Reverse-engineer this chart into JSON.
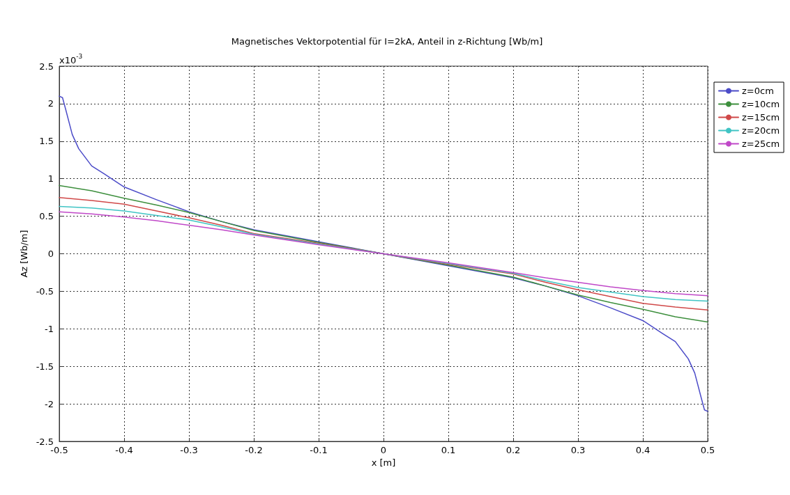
{
  "chart_data": {
    "type": "line",
    "title": "Magnetisches Vektorpotential für I=2kA, Anteil in z-Richtung [Wb/m]",
    "xlabel": "x [m]",
    "ylabel": "Az [Wb/m]",
    "annotations": [
      "x10$^{-3}$"
    ],
    "xlim": [
      -0.5,
      0.5
    ],
    "xticks": [
      -0.5,
      -0.4,
      -0.3,
      -0.2,
      -0.1,
      0,
      0.1,
      0.2,
      0.3,
      0.4,
      0.5
    ],
    "ylim": [
      -2.5,
      2.5
    ],
    "yticks": [
      -2.5,
      -2,
      -1.5,
      -1,
      -0.5,
      0,
      0.5,
      1,
      1.5,
      2,
      2.5
    ],
    "grid": true,
    "legend": "top right",
    "marker": "none",
    "line_style": "solid",
    "series": [
      {
        "name": "z=0cm",
        "color": "#4b4bc8",
        "x": [
          -0.5,
          -0.495,
          -0.49,
          -0.48,
          -0.47,
          -0.45,
          -0.43,
          -0.4,
          -0.35,
          -0.3,
          -0.25,
          -0.2,
          -0.1,
          0,
          0.1,
          0.2,
          0.25,
          0.3,
          0.35,
          0.4,
          0.43,
          0.45,
          0.47,
          0.48,
          0.49,
          0.495,
          0.5
        ],
        "values": [
          2.1,
          2.08,
          1.92,
          1.59,
          1.4,
          1.17,
          1.06,
          0.89,
          0.72,
          0.56,
          0.43,
          0.32,
          0.16,
          0,
          -0.16,
          -0.32,
          -0.43,
          -0.56,
          -0.72,
          -0.89,
          -1.06,
          -1.17,
          -1.4,
          -1.59,
          -1.92,
          -2.08,
          -2.1
        ]
      },
      {
        "name": "z=10cm",
        "color": "#3d8f3d",
        "x": [
          -0.5,
          -0.45,
          -0.4,
          -0.35,
          -0.3,
          -0.25,
          -0.2,
          -0.1,
          0,
          0.1,
          0.2,
          0.25,
          0.3,
          0.35,
          0.4,
          0.45,
          0.5
        ],
        "values": [
          0.91,
          0.84,
          0.74,
          0.65,
          0.55,
          0.43,
          0.31,
          0.15,
          0,
          -0.15,
          -0.31,
          -0.43,
          -0.55,
          -0.65,
          -0.74,
          -0.84,
          -0.91
        ]
      },
      {
        "name": "z=15cm",
        "color": "#d04848",
        "x": [
          -0.5,
          -0.45,
          -0.4,
          -0.35,
          -0.3,
          -0.25,
          -0.2,
          -0.1,
          0,
          0.1,
          0.2,
          0.25,
          0.3,
          0.35,
          0.4,
          0.45,
          0.5
        ],
        "values": [
          0.75,
          0.71,
          0.66,
          0.57,
          0.48,
          0.38,
          0.27,
          0.14,
          0,
          -0.14,
          -0.27,
          -0.38,
          -0.48,
          -0.57,
          -0.66,
          -0.71,
          -0.75
        ]
      },
      {
        "name": "z=20cm",
        "color": "#40c4c4",
        "x": [
          -0.5,
          -0.45,
          -0.4,
          -0.35,
          -0.3,
          -0.25,
          -0.2,
          -0.1,
          0,
          0.1,
          0.2,
          0.25,
          0.3,
          0.35,
          0.4,
          0.45,
          0.5
        ],
        "values": [
          0.63,
          0.61,
          0.57,
          0.51,
          0.45,
          0.36,
          0.26,
          0.13,
          0,
          -0.13,
          -0.26,
          -0.36,
          -0.45,
          -0.51,
          -0.57,
          -0.61,
          -0.63
        ]
      },
      {
        "name": "z=25cm",
        "color": "#c048c8",
        "x": [
          -0.5,
          -0.45,
          -0.4,
          -0.35,
          -0.3,
          -0.25,
          -0.2,
          -0.1,
          0,
          0.1,
          0.2,
          0.25,
          0.3,
          0.35,
          0.4,
          0.45,
          0.5
        ],
        "values": [
          0.56,
          0.53,
          0.49,
          0.44,
          0.38,
          0.32,
          0.25,
          0.12,
          0,
          -0.12,
          -0.25,
          -0.32,
          -0.38,
          -0.44,
          -0.49,
          -0.53,
          -0.56
        ]
      }
    ]
  }
}
